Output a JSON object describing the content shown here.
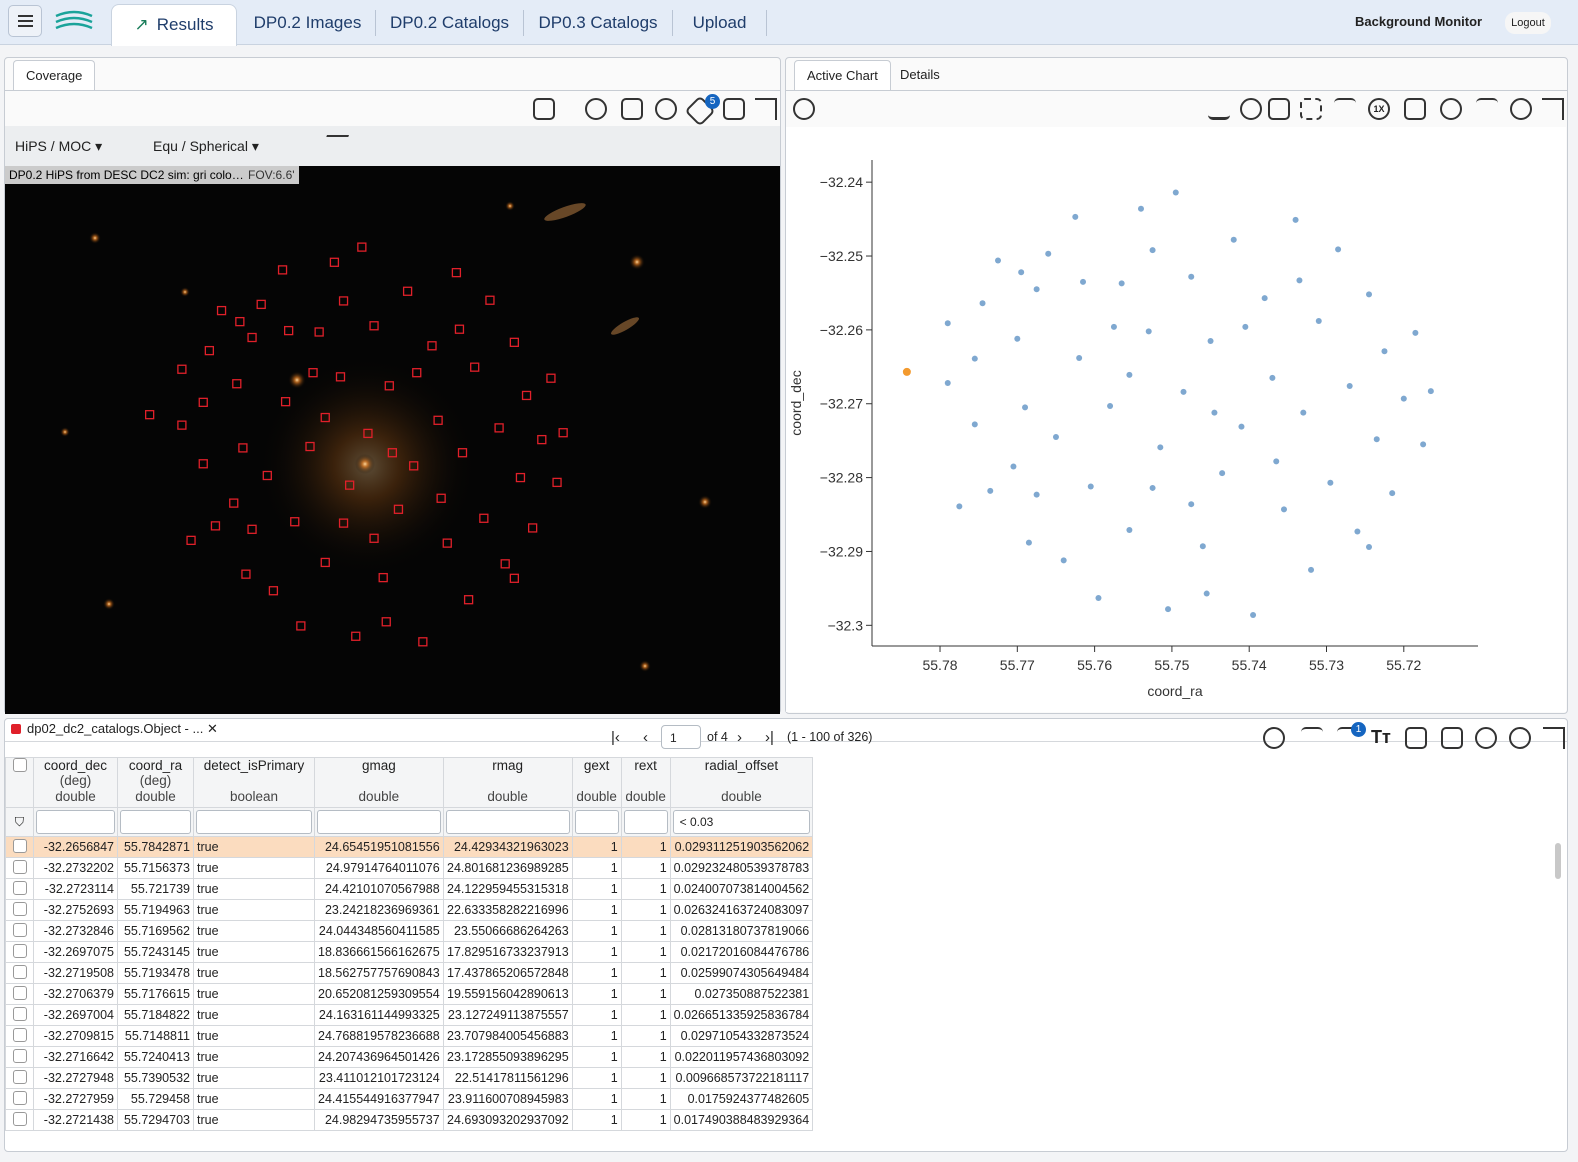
{
  "header": {
    "tabs": [
      "Results",
      "DP0.2 Images",
      "DP0.2 Catalogs",
      "DP0.3 Catalogs",
      "Upload"
    ],
    "right": [
      "Background Monitor",
      "Logout"
    ]
  },
  "coverage": {
    "tab": "Coverage",
    "layer_count": "5",
    "selectors": [
      "HiPS / MOC",
      "Equ / Spherical"
    ],
    "image_title": "DP0.2 HiPS from DESC DC2 sim: gri colo…",
    "fov": "FOV:6.6'"
  },
  "chart_panel": {
    "tabs": [
      "Active Chart",
      "Details"
    ],
    "zoom_badge": "1X"
  },
  "chart_data": {
    "type": "scatter",
    "x_label": "coord_ra",
    "y_label": "coord_dec",
    "xlim": [
      55.7888,
      55.7104
    ],
    "ylim": [
      -32.3028,
      -32.237
    ],
    "xticks": [
      55.78,
      55.77,
      55.76,
      55.75,
      55.74,
      55.73,
      55.72
    ],
    "yticks": [
      {
        "value": -32.24,
        "label": "−32.24"
      },
      {
        "value": -32.25,
        "label": "−32.25"
      },
      {
        "value": -32.26,
        "label": "−32.26"
      },
      {
        "value": -32.27,
        "label": "−32.27"
      },
      {
        "value": -32.28,
        "label": "−32.28"
      },
      {
        "value": -32.29,
        "label": "−32.29"
      },
      {
        "value": -32.3,
        "label": "−32.3"
      }
    ],
    "series": [
      {
        "color": "#7fa8d0",
        "x": [
          55.779,
          55.779,
          55.7775,
          55.7755,
          55.7745,
          55.7735,
          55.7725,
          55.7705,
          55.77,
          55.769,
          55.7685,
          55.7675,
          55.766,
          55.765,
          55.764,
          55.7625,
          55.762,
          55.7605,
          55.7595,
          55.758,
          55.7565,
          55.7555,
          55.754,
          55.753,
          55.7515,
          55.7505,
          55.7495,
          55.7485,
          55.7475,
          55.746,
          55.745,
          55.7435,
          55.742,
          55.741,
          55.7395,
          55.738,
          55.737,
          55.7355,
          55.734,
          55.733,
          55.732,
          55.731,
          55.7295,
          55.7285,
          55.727,
          55.726,
          55.7245,
          55.7235,
          55.7225,
          55.7215,
          55.72,
          55.7185,
          55.7175,
          55.7165,
          55.7555,
          55.7615,
          55.7445,
          55.7525,
          55.7365,
          55.7405,
          55.7575,
          55.7475,
          55.7335,
          55.7695,
          55.7245,
          55.7675,
          55.7755,
          55.7525,
          55.7455
        ],
        "values": [
          -32.2672,
          -32.2591,
          -32.2839,
          -32.2639,
          -32.2564,
          -32.2818,
          -32.2506,
          -32.2785,
          -32.2612,
          -32.2705,
          -32.2888,
          -32.2545,
          -32.2497,
          -32.2745,
          -32.2912,
          -32.2447,
          -32.2638,
          -32.2812,
          -32.2963,
          -32.2703,
          -32.2537,
          -32.2871,
          -32.2436,
          -32.2602,
          -32.2759,
          -32.2978,
          -32.2414,
          -32.2684,
          -32.2528,
          -32.2893,
          -32.2615,
          -32.2794,
          -32.2478,
          -32.2731,
          -32.2986,
          -32.2557,
          -32.2665,
          -32.2843,
          -32.2451,
          -32.2712,
          -32.2925,
          -32.2588,
          -32.2807,
          -32.2491,
          -32.2676,
          -32.2873,
          -32.2552,
          -32.2748,
          -32.2629,
          -32.2821,
          -32.2693,
          -32.2604,
          -32.2755,
          -32.2683,
          -32.2661,
          -32.2535,
          -32.2712,
          -32.2814,
          -32.2778,
          -32.2596,
          -32.2596,
          -32.2836,
          -32.2533,
          -32.2522,
          -32.2894,
          -32.2823,
          -32.2728,
          -32.2492,
          -32.2957
        ]
      },
      {
        "color": "#f39a2e",
        "x": [
          55.7842871
        ],
        "values": [
          -32.2656847
        ]
      }
    ]
  },
  "table": {
    "title": "dp02_dc2_catalogs.Object - ...",
    "page": "1",
    "page_of": "of 4",
    "range": "(1 - 100 of 326)",
    "filter_badge": "1",
    "columns": [
      {
        "name": "coord_dec",
        "unit": "(deg)",
        "type": "double"
      },
      {
        "name": "coord_ra",
        "unit": "(deg)",
        "type": "double"
      },
      {
        "name": "detect_isPrimary",
        "type": "boolean"
      },
      {
        "name": "gmag",
        "type": "double"
      },
      {
        "name": "rmag",
        "type": "double"
      },
      {
        "name": "gext",
        "type": "double"
      },
      {
        "name": "rext",
        "type": "double"
      },
      {
        "name": "radial_offset",
        "type": "double",
        "filter": "< 0.03"
      }
    ],
    "rows": [
      [
        "-32.2656847",
        "55.7842871",
        "true",
        "24.65451951081556",
        "24.42934321963023",
        "1",
        "1",
        "0.029311251903562062"
      ],
      [
        "-32.2732202",
        "55.7156373",
        "true",
        "24.97914764011076",
        "24.801681236989285",
        "1",
        "1",
        "0.029232480539378783"
      ],
      [
        "-32.2723114",
        "55.721739",
        "true",
        "24.42101070567988",
        "24.122959455315318",
        "1",
        "1",
        "0.024007073814004562"
      ],
      [
        "-32.2752693",
        "55.7194963",
        "true",
        "23.24218236969361",
        "22.633358282216996",
        "1",
        "1",
        "0.026324163724083097"
      ],
      [
        "-32.2732846",
        "55.7169562",
        "true",
        "24.044348560411585",
        "23.55066686264263",
        "1",
        "1",
        "0.02813180737819066"
      ],
      [
        "-32.2697075",
        "55.7243145",
        "true",
        "18.836661566162675",
        "17.829516733237913",
        "1",
        "1",
        "0.02172016084476786"
      ],
      [
        "-32.2719508",
        "55.7193478",
        "true",
        "18.562757757690843",
        "17.437865206572848",
        "1",
        "1",
        "0.02599074305649484"
      ],
      [
        "-32.2706379",
        "55.7176615",
        "true",
        "20.652081259309554",
        "19.559156042890613",
        "1",
        "1",
        "0.027350887522381"
      ],
      [
        "-32.2697004",
        "55.7184822",
        "true",
        "24.163161144993325",
        "23.127249113875557",
        "1",
        "1",
        "0.026651335925836784"
      ],
      [
        "-32.2709815",
        "55.7148811",
        "true",
        "24.768819578236688",
        "23.707984005456883",
        "1",
        "1",
        "0.02971054332873524"
      ],
      [
        "-32.2716642",
        "55.7240413",
        "true",
        "24.207436964501426",
        "23.172855093896295",
        "1",
        "1",
        "0.022011957436803092"
      ],
      [
        "-32.2727948",
        "55.7390532",
        "true",
        "23.411012101723124",
        "22.51417811561296",
        "1",
        "1",
        "0.009668573722181117"
      ],
      [
        "-32.2727959",
        "55.729458",
        "true",
        "24.415544916377947",
        "23.911600708945983",
        "1",
        "1",
        "0.0175924377482605"
      ],
      [
        "-32.2721438",
        "55.7294703",
        "true",
        "24.98294735955737",
        "24.693093202937092",
        "1",
        "1",
        "0.017490388483929364"
      ]
    ]
  }
}
